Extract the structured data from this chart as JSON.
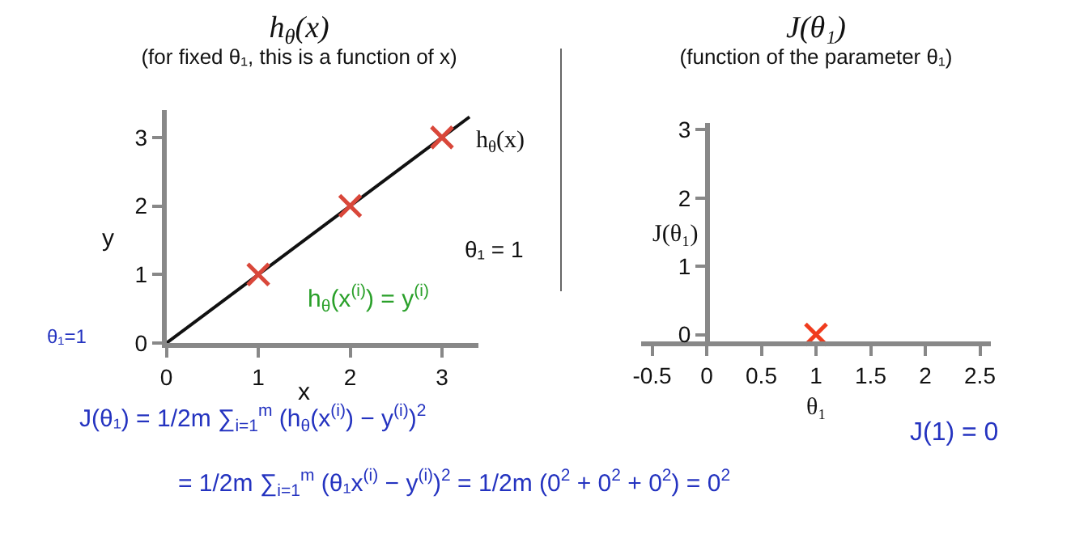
{
  "chart_data": [
    {
      "type": "scatter",
      "title": "h$_{θ}$(x)",
      "subtitle": "(for fixed θ₁, this is a function of x)",
      "xlabel": "x",
      "ylabel": "y",
      "series": [
        {
          "type": "line",
          "marker": "none",
          "color": "#111111",
          "x": [
            0,
            3.3
          ],
          "values": [
            0,
            3.3
          ]
        },
        {
          "color": "#d9473a",
          "x": [
            1,
            2,
            3
          ],
          "values": [
            1,
            2,
            3
          ]
        }
      ],
      "xlim": [
        0,
        3.4
      ],
      "ylim": [
        0,
        3.4
      ],
      "xticks": [
        0,
        1,
        2,
        3
      ],
      "yticks": [
        0,
        1,
        2,
        3
      ],
      "grid": false,
      "legend": false,
      "marker": "cross",
      "annotations": [
        "h$_{θ}$(x)",
        "h$_{θ}$(x$^{(i)}$) = y$^{(i)}$",
        "θ₁ = 1",
        "θ₁=1",
        "J(θ₁) = 1/2m ∑$_{i=1}$$^{m}$ (h$_{θ}$(x$^{(i)}$) − y$^{(i)}$)$^{2}$",
        "= 1/2m ∑$_{i=1}$$^{m}$ (θ₁x$^{(i)}$ − y$^{(i)}$)$^{2}$ = 1/2m (0$^{2}$ + 0$^{2}$ + 0$^{2}$) = 0$^{2}$"
      ]
    },
    {
      "type": "scatter",
      "title": "J(θ₁)",
      "subtitle": "(function of the parameter θ₁)",
      "xlabel": "θ₁",
      "ylabel": "J(θ₁)",
      "series": [
        {
          "color": "#f03c1e",
          "x": [
            1
          ],
          "values": [
            0
          ]
        }
      ],
      "xlim": [
        -0.6,
        2.6
      ],
      "ylim": [
        -0.1,
        3.1
      ],
      "xticks": [
        -0.5,
        0,
        0.5,
        1,
        1.5,
        2,
        2.5
      ],
      "yticks": [
        0,
        1,
        2,
        3
      ],
      "grid": false,
      "legend": false,
      "marker": "cross",
      "annotations": [
        "J(1) = 0"
      ]
    }
  ]
}
